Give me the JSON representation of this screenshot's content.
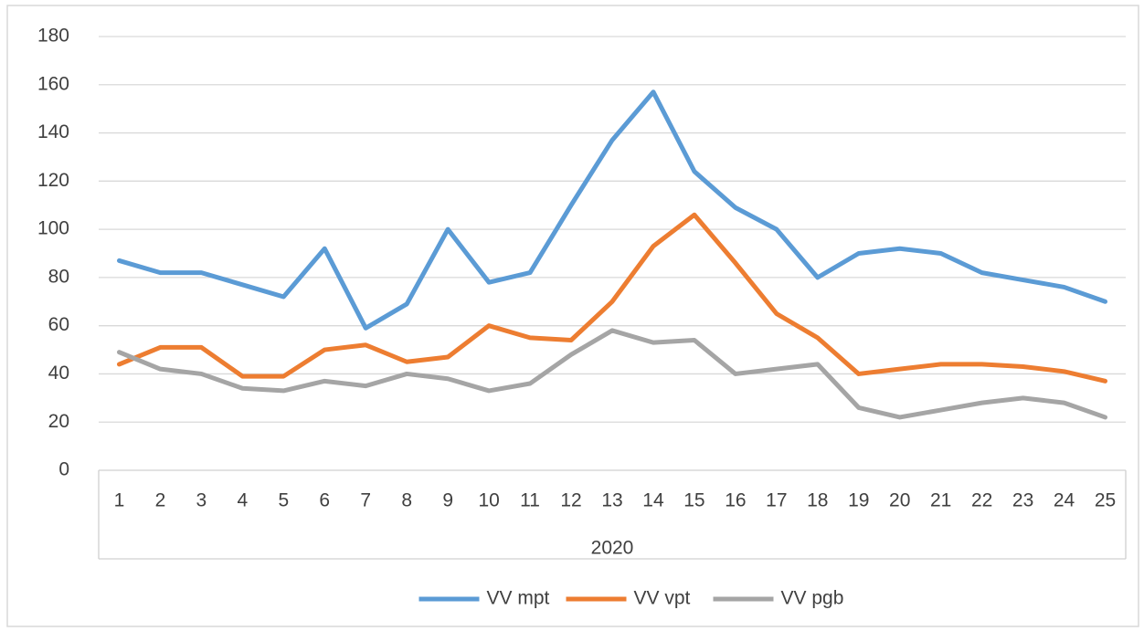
{
  "chart_data": {
    "type": "line",
    "categories": [
      "1",
      "2",
      "3",
      "4",
      "5",
      "6",
      "7",
      "8",
      "9",
      "10",
      "11",
      "12",
      "13",
      "14",
      "15",
      "16",
      "17",
      "18",
      "19",
      "20",
      "21",
      "22",
      "23",
      "24",
      "25"
    ],
    "group_label": "2020",
    "series": [
      {
        "name": "VV mpt",
        "color": "#5b9bd5",
        "values": [
          87,
          82,
          82,
          77,
          72,
          92,
          59,
          69,
          100,
          78,
          82,
          110,
          137,
          157,
          124,
          109,
          100,
          80,
          90,
          92,
          90,
          82,
          79,
          76,
          70
        ]
      },
      {
        "name": "VV vpt",
        "color": "#ed7d31",
        "values": [
          44,
          51,
          51,
          39,
          39,
          50,
          52,
          45,
          47,
          60,
          55,
          54,
          70,
          93,
          106,
          86,
          65,
          55,
          40,
          42,
          44,
          44,
          43,
          41,
          37
        ]
      },
      {
        "name": "VV pgb",
        "color": "#a5a5a5",
        "values": [
          49,
          42,
          40,
          34,
          33,
          37,
          35,
          40,
          38,
          33,
          36,
          48,
          58,
          53,
          54,
          40,
          42,
          44,
          26,
          22,
          25,
          28,
          30,
          28,
          22
        ]
      }
    ],
    "ylim": [
      0,
      180
    ],
    "yticks": [
      0,
      20,
      40,
      60,
      80,
      100,
      120,
      140,
      160,
      180
    ],
    "grid": true,
    "legend": "bottom"
  }
}
